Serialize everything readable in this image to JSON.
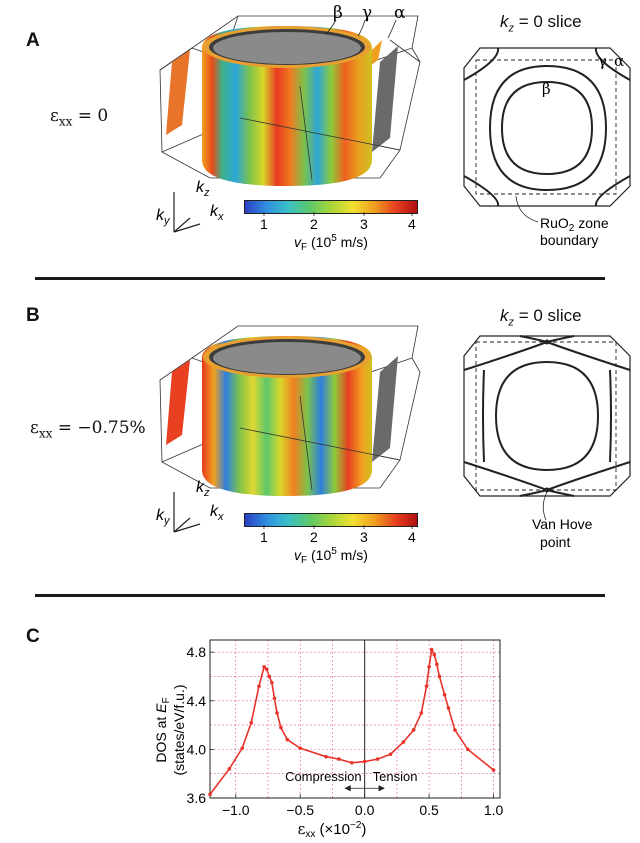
{
  "colors": {
    "accent": "#e8332a",
    "dark_gray": "#5b5b5b",
    "line": "#222222"
  },
  "panelA": {
    "letter": "A",
    "strain_symbol": "ε",
    "strain_sub": "xx",
    "strain_value": "= 0",
    "sheet_labels": [
      "β",
      "γ",
      "α"
    ],
    "axes": {
      "ky": "k",
      "ky_sub": "y",
      "kx": "k",
      "kx_sub": "x",
      "kz": "k",
      "kz_sub": "z"
    },
    "colorbar": {
      "ticks": [
        "1",
        "2",
        "3",
        "4"
      ],
      "label_main": "v",
      "label_sub": "F",
      "label_unit_pre": "(10",
      "label_unit_exp": "5",
      "label_unit_post": " m/s)"
    },
    "slice": {
      "title_k": "k",
      "title_sub": "z",
      "title_rest": " = 0 slice",
      "gamma": "γ",
      "alpha": "α",
      "beta": "β",
      "zone_line1_a": "RuO",
      "zone_line1_sub": "2",
      "zone_line1_b": " zone",
      "zone_line2": "boundary"
    }
  },
  "panelB": {
    "letter": "B",
    "strain_symbol": "ε",
    "strain_sub": "xx",
    "strain_value": "= −0.75%",
    "axes": {
      "ky": "k",
      "ky_sub": "y",
      "kx": "k",
      "kx_sub": "x",
      "kz": "k",
      "kz_sub": "z"
    },
    "colorbar": {
      "ticks": [
        "1",
        "2",
        "3",
        "4"
      ],
      "label_main": "v",
      "label_sub": "F",
      "label_unit_pre": "(10",
      "label_unit_exp": "5",
      "label_unit_post": " m/s)"
    },
    "slice": {
      "title_k": "k",
      "title_sub": "z",
      "title_rest": " = 0 slice",
      "vh_line1": "Van Hove",
      "vh_line2": "point"
    }
  },
  "panelC": {
    "letter": "C",
    "compression_label": "Compression",
    "tension_label": "Tension"
  },
  "chart_data": {
    "type": "line",
    "title": "",
    "xlabel_symbol": "ε",
    "xlabel_sub": "xx",
    "xlabel_rest": " (×10",
    "xlabel_exp": "−2",
    "xlabel_end": ")",
    "ylabel_line1_pre": "DOS at ",
    "ylabel_line1_E": "E",
    "ylabel_line1_sub": "F",
    "ylabel_line2": "(states/eV/f.u.)",
    "xlim": [
      -1.2,
      1.05
    ],
    "ylim": [
      3.6,
      4.9
    ],
    "xticks": [
      -1.0,
      -0.5,
      0.0,
      0.5,
      1.0
    ],
    "xtick_labels": [
      "−1.0",
      "−0.5",
      "0.0",
      "0.5",
      "1.0"
    ],
    "yticks": [
      3.6,
      4.0,
      4.4,
      4.8
    ],
    "ytick_labels": [
      "3.6",
      "4.0",
      "4.4",
      "4.8"
    ],
    "grid": true,
    "series": [
      {
        "color": "#e8332a",
        "x": [
          -1.2,
          -1.05,
          -0.95,
          -0.88,
          -0.82,
          -0.78,
          -0.76,
          -0.74,
          -0.72,
          -0.7,
          -0.68,
          -0.65,
          -0.6,
          -0.5,
          -0.3,
          -0.2,
          -0.1,
          0.0,
          0.1,
          0.2,
          0.3,
          0.38,
          0.44,
          0.48,
          0.5,
          0.52,
          0.54,
          0.56,
          0.58,
          0.62,
          0.65,
          0.7,
          0.8,
          1.0
        ],
        "y": [
          3.63,
          3.84,
          4.01,
          4.22,
          4.52,
          4.68,
          4.66,
          4.6,
          4.55,
          4.42,
          4.3,
          4.18,
          4.08,
          4.01,
          3.94,
          3.92,
          3.89,
          3.9,
          3.92,
          3.96,
          4.06,
          4.16,
          4.3,
          4.52,
          4.68,
          4.82,
          4.78,
          4.7,
          4.6,
          4.45,
          4.34,
          4.16,
          4.0,
          3.83
        ]
      }
    ]
  }
}
